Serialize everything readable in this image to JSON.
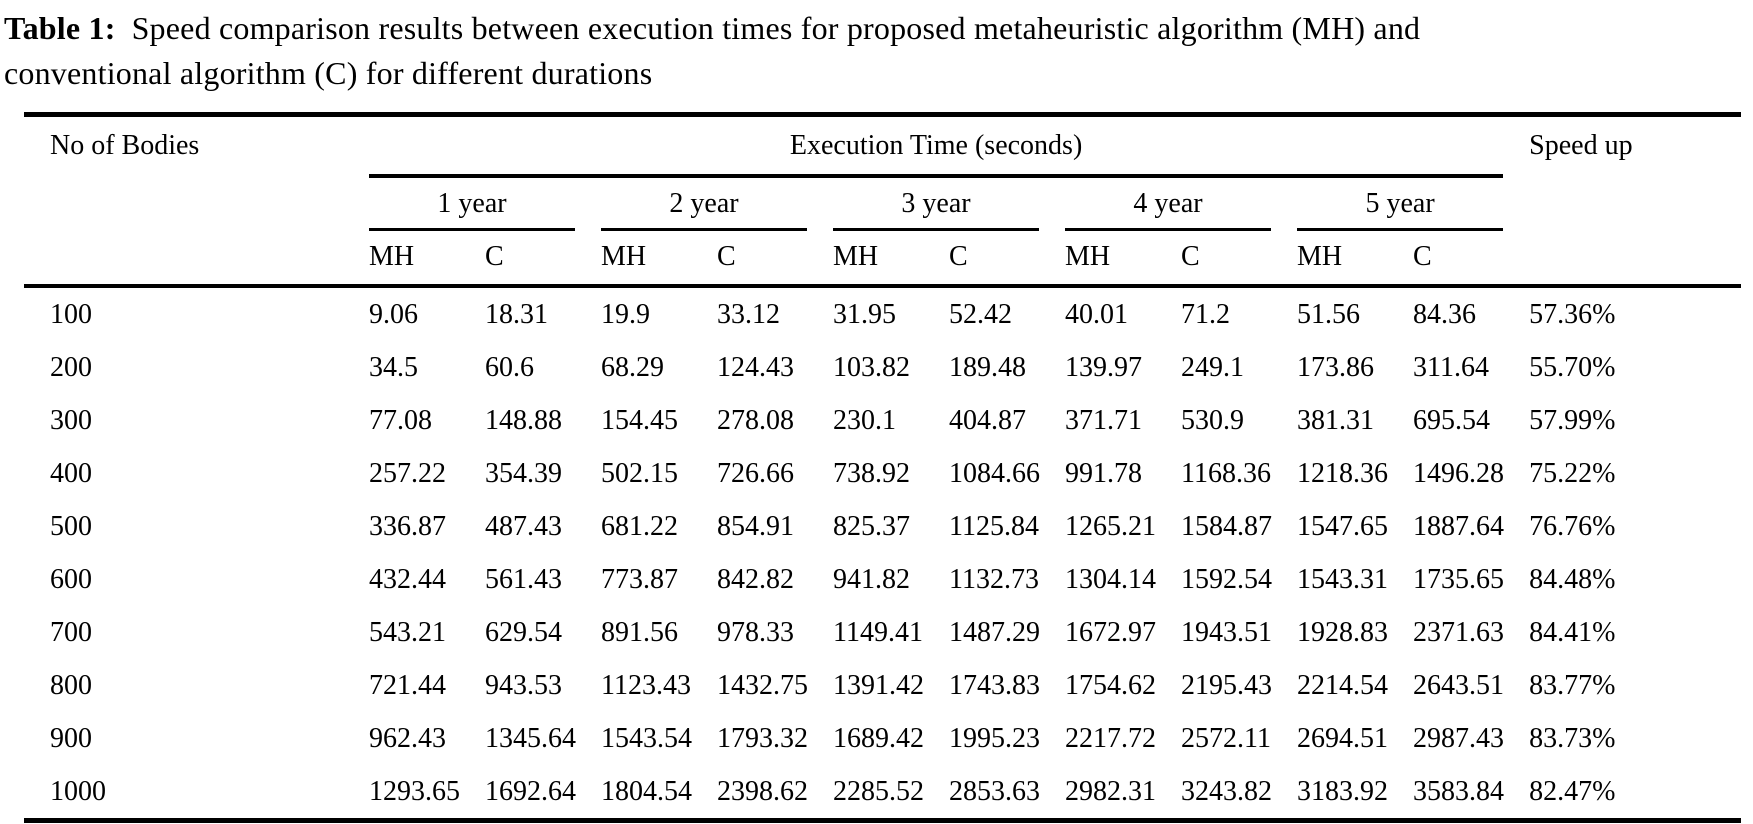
{
  "caption": {
    "label": "Table 1:",
    "line1": "Speed comparison results between execution times for proposed metaheuristic algorithm (MH) and",
    "line2": "conventional algorithm (C) for different durations"
  },
  "table": {
    "col1_header": "No of Bodies",
    "group_header": "Execution Time (seconds)",
    "speedup_header": "Speed up",
    "year_groups": [
      "1 year",
      "2 year",
      "3 year",
      "4 year",
      "5 year"
    ],
    "sub_headers": [
      "MH",
      "C"
    ],
    "rows": [
      {
        "bodies": "100",
        "values": [
          "9.06",
          "18.31",
          "19.9",
          "33.12",
          "31.95",
          "52.42",
          "40.01",
          "71.2",
          "51.56",
          "84.36"
        ],
        "speedup": "57.36%"
      },
      {
        "bodies": "200",
        "values": [
          "34.5",
          "60.6",
          "68.29",
          "124.43",
          "103.82",
          "189.48",
          "139.97",
          "249.1",
          "173.86",
          "311.64"
        ],
        "speedup": "55.70%"
      },
      {
        "bodies": "300",
        "values": [
          "77.08",
          "148.88",
          "154.45",
          "278.08",
          "230.1",
          "404.87",
          "371.71",
          "530.9",
          "381.31",
          "695.54"
        ],
        "speedup": "57.99%"
      },
      {
        "bodies": "400",
        "values": [
          "257.22",
          "354.39",
          "502.15",
          "726.66",
          "738.92",
          "1084.66",
          "991.78",
          "1168.36",
          "1218.36",
          "1496.28"
        ],
        "speedup": "75.22%"
      },
      {
        "bodies": "500",
        "values": [
          "336.87",
          "487.43",
          "681.22",
          "854.91",
          "825.37",
          "1125.84",
          "1265.21",
          "1584.87",
          "1547.65",
          "1887.64"
        ],
        "speedup": "76.76%"
      },
      {
        "bodies": "600",
        "values": [
          "432.44",
          "561.43",
          "773.87",
          "842.82",
          "941.82",
          "1132.73",
          "1304.14",
          "1592.54",
          "1543.31",
          "1735.65"
        ],
        "speedup": "84.48%"
      },
      {
        "bodies": "700",
        "values": [
          "543.21",
          "629.54",
          "891.56",
          "978.33",
          "1149.41",
          "1487.29",
          "1672.97",
          "1943.51",
          "1928.83",
          "2371.63"
        ],
        "speedup": "84.41%"
      },
      {
        "bodies": "800",
        "values": [
          "721.44",
          "943.53",
          "1123.43",
          "1432.75",
          "1391.42",
          "1743.83",
          "1754.62",
          "2195.43",
          "2214.54",
          "2643.51"
        ],
        "speedup": "83.77%"
      },
      {
        "bodies": "900",
        "values": [
          "962.43",
          "1345.64",
          "1543.54",
          "1793.32",
          "1689.42",
          "1995.23",
          "2217.72",
          "2572.11",
          "2694.51",
          "2987.43"
        ],
        "speedup": "83.73%"
      },
      {
        "bodies": "1000",
        "values": [
          "1293.65",
          "1692.64",
          "1804.54",
          "2398.62",
          "2285.52",
          "2853.63",
          "2982.31",
          "3243.82",
          "3183.92",
          "3583.84"
        ],
        "speedup": "82.47%"
      }
    ]
  }
}
